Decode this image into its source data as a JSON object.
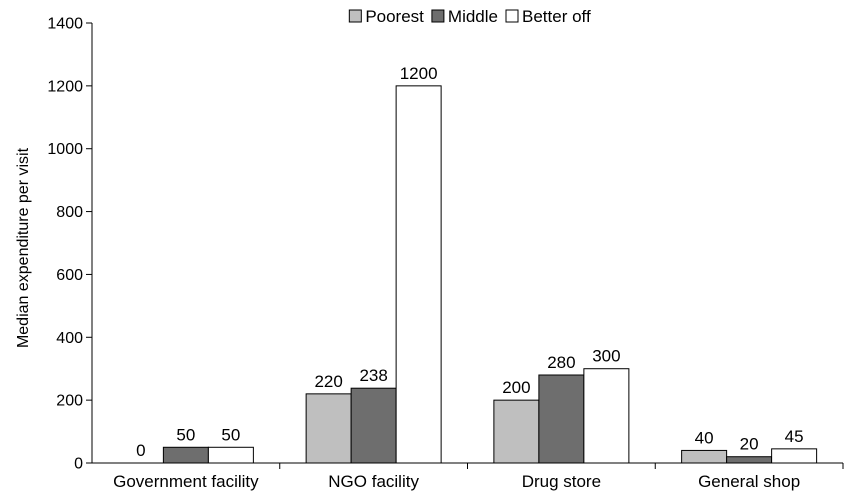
{
  "chart_data": {
    "type": "bar",
    "title": "",
    "xlabel": "",
    "ylabel": "Median expenditure per visit",
    "ylim": [
      0,
      1400
    ],
    "yticks": [
      0,
      200,
      400,
      600,
      800,
      1000,
      1200,
      1400
    ],
    "categories": [
      "Government facility",
      "NGO facility",
      "Drug store",
      "General shop"
    ],
    "series": [
      {
        "name": "Poorest",
        "values": [
          0,
          220,
          200,
          40
        ],
        "color": "#bfbfbf"
      },
      {
        "name": "Middle",
        "values": [
          50,
          238,
          280,
          20
        ],
        "color": "#6e6e6e"
      },
      {
        "name": "Better off",
        "values": [
          50,
          1200,
          300,
          45
        ],
        "color": "#ffffff"
      }
    ],
    "legend_position": "top-center",
    "grid": false
  }
}
